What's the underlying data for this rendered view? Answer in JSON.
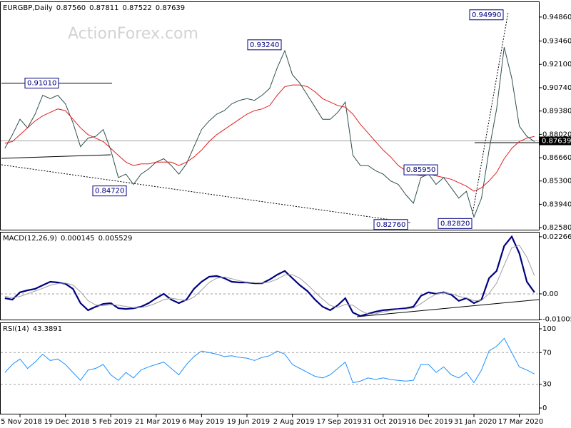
{
  "chart_data": [
    {
      "type": "line",
      "title": "EURGBP,Daily",
      "ohlc": [
        {
          "value": 0.8756,
          "label": "0.87560"
        },
        {
          "value": 0.87811,
          "label": "0.87811"
        },
        {
          "value": 0.87522,
          "label": "0.87522"
        },
        {
          "value": 0.87639,
          "label": "0.87639"
        }
      ],
      "watermark": "ActionForex.com",
      "categories": [
        null,
        null,
        "5 Nov 2018",
        null,
        null,
        null,
        null,
        null,
        "19 Dec 2018",
        null,
        null,
        null,
        null,
        null,
        "5 Feb 2019",
        null,
        null,
        null,
        null,
        null,
        "21 Mar 2019",
        null,
        null,
        null,
        null,
        null,
        "6 May 2019",
        null,
        null,
        null,
        null,
        null,
        "19 Jun 2019",
        null,
        null,
        null,
        null,
        null,
        "2 Aug 2019",
        null,
        null,
        null,
        null,
        null,
        "17 Sep 2019",
        null,
        null,
        null,
        null,
        null,
        "31 Oct 2019",
        null,
        null,
        null,
        null,
        null,
        "16 Dec 2019",
        null,
        null,
        null,
        null,
        null,
        "31 Jan 2020",
        null,
        null,
        null,
        null,
        null,
        "17 Mar 2020",
        null,
        null
      ],
      "series": [
        {
          "color": "#2f4f4f",
          "values": [
            0.872,
            0.88,
            0.889,
            0.884,
            0.892,
            0.903,
            0.901,
            0.903,
            0.898,
            0.887,
            0.873,
            0.878,
            0.879,
            0.883,
            0.871,
            0.855,
            0.857,
            0.851,
            0.857,
            0.86,
            0.864,
            0.866,
            0.862,
            0.857,
            0.863,
            0.873,
            0.883,
            0.888,
            0.892,
            0.894,
            0.898,
            0.9,
            0.901,
            0.9,
            0.903,
            0.907,
            0.919,
            0.929,
            0.915,
            0.91,
            0.903,
            0.896,
            0.889,
            0.889,
            0.893,
            0.899,
            0.868,
            0.862,
            0.862,
            0.859,
            0.857,
            0.853,
            0.851,
            0.845,
            0.84,
            0.855,
            0.857,
            0.851,
            0.855,
            0.849,
            0.843,
            0.847,
            0.832,
            0.843,
            0.871,
            0.895,
            0.931,
            0.913,
            0.885,
            0.879,
            0.876
          ]
        },
        {
          "color": "#e02020",
          "values": [
            0.875,
            0.876,
            0.88,
            0.884,
            0.888,
            0.891,
            0.893,
            0.895,
            0.894,
            0.889,
            0.884,
            0.88,
            0.878,
            0.876,
            0.872,
            0.868,
            0.864,
            0.862,
            0.863,
            0.863,
            0.864,
            0.864,
            0.864,
            0.862,
            0.864,
            0.867,
            0.871,
            0.876,
            0.88,
            0.883,
            0.886,
            0.889,
            0.892,
            0.894,
            0.895,
            0.897,
            0.903,
            0.908,
            0.909,
            0.909,
            0.908,
            0.905,
            0.901,
            0.899,
            0.897,
            0.896,
            0.892,
            0.886,
            0.881,
            0.876,
            0.871,
            0.867,
            0.862,
            0.859,
            0.857,
            0.856,
            0.857,
            0.856,
            0.855,
            0.854,
            0.852,
            0.85,
            0.847,
            0.849,
            0.853,
            0.858,
            0.866,
            0.872,
            0.876,
            0.878,
            0.879
          ]
        }
      ],
      "last_price": {
        "value": 0.87639,
        "label": "0.87639"
      },
      "annotations": [
        {
          "value": 0.9101,
          "label": "0.91010"
        },
        {
          "value": 0.8472,
          "label": "0.84720"
        },
        {
          "value": 0.9324,
          "label": "0.93240"
        },
        {
          "value": 0.8276,
          "label": "0.82760"
        },
        {
          "value": 0.8595,
          "label": "0.85950"
        },
        {
          "value": 0.8282,
          "label": "0.82820"
        },
        {
          "value": 0.9499,
          "label": "0.94990"
        }
      ],
      "ylim": [
        0.8246,
        0.9577
      ],
      "yticks": [
        {
          "value": 0.9486,
          "label": "0.94860"
        },
        {
          "value": 0.9346,
          "label": "0.93460"
        },
        {
          "value": 0.921,
          "label": "0.92100"
        },
        {
          "value": 0.9074,
          "label": "0.90740"
        },
        {
          "value": 0.8938,
          "label": "0.89380"
        },
        {
          "value": 0.8802,
          "label": "0.88020"
        },
        {
          "value": 0.8666,
          "label": "0.86660"
        },
        {
          "value": 0.853,
          "label": "0.85300"
        },
        {
          "value": 0.8394,
          "label": "0.83940"
        },
        {
          "value": 0.8258,
          "label": "0.82580"
        }
      ]
    },
    {
      "type": "line",
      "title": "MACD(12,26,9)",
      "readings": [
        0.000145,
        0.005529
      ],
      "series": [
        {
          "color": "#000080",
          "values": [
            -0.0017,
            -0.0023,
            0.0006,
            0.0014,
            0.002,
            0.0034,
            0.0048,
            0.0045,
            0.004,
            0.002,
            -0.0037,
            -0.0065,
            -0.0051,
            -0.004,
            -0.0037,
            -0.0057,
            -0.006,
            -0.0057,
            -0.0051,
            -0.0037,
            -0.0017,
            0,
            -0.0023,
            -0.0037,
            -0.0023,
            0.002,
            0.0048,
            0.0068,
            0.0071,
            0.0062,
            0.0048,
            0.0045,
            0.0045,
            0.0042,
            0.0042,
            0.0057,
            0.0076,
            0.0091,
            0.0062,
            0.0034,
            0.0011,
            -0.0023,
            -0.0051,
            -0.0065,
            -0.0045,
            -0.0017,
            -0.0074,
            -0.0088,
            -0.0079,
            -0.0071,
            -0.0065,
            -0.0062,
            -0.006,
            -0.0057,
            -0.0051,
            -0.0008,
            0.0006,
            0,
            0.0006,
            -0.0003,
            -0.0028,
            -0.0017,
            -0.0037,
            -0.0023,
            0.0062,
            0.0091,
            0.019,
            0.0227,
            0.0161,
            0.0048,
            0.0006
          ]
        },
        {
          "color": "#a0a0a0",
          "values": [
            -0.001,
            -0.0015,
            -0.001,
            0,
            0.0011,
            0.0022,
            0.0034,
            0.0041,
            0.0043,
            0.0035,
            0.0008,
            -0.0027,
            -0.0044,
            -0.0047,
            -0.0043,
            -0.0045,
            -0.005,
            -0.0055,
            -0.0054,
            -0.0048,
            -0.0037,
            -0.0023,
            -0.0017,
            -0.0022,
            -0.0027,
            -0.0013,
            0.0015,
            0.0045,
            0.0062,
            0.0067,
            0.006,
            0.0052,
            0.0046,
            0.0044,
            0.0043,
            0.0047,
            0.0058,
            0.0075,
            0.0076,
            0.0062,
            0.0036,
            0.0007,
            -0.0021,
            -0.0046,
            -0.0054,
            -0.0042,
            -0.0045,
            -0.0066,
            -0.008,
            -0.0079,
            -0.0072,
            -0.0066,
            -0.0062,
            -0.006,
            -0.0056,
            -0.0039,
            -0.0018,
            -0.0001,
            0.0004,
            0.0001,
            -0.001,
            -0.0016,
            -0.0027,
            -0.0026,
            0.0001,
            0.0043,
            0.0114,
            0.0183,
            0.0193,
            0.0145,
            0.0072
          ]
        }
      ],
      "levels": [
        0
      ],
      "ylim": [
        -0.0102,
        0.0246
      ],
      "yticks": [
        0.022662,
        {
          "value": 0,
          "label": "0.00"
        },
        -0.010052
      ]
    },
    {
      "type": "line",
      "title": "RSI(14)",
      "readings": [
        43.3891
      ],
      "series": [
        {
          "color": "#1e90ff",
          "values": [
            45,
            55,
            62,
            50,
            58,
            68,
            60,
            62,
            55,
            45,
            35,
            48,
            50,
            55,
            42,
            35,
            45,
            38,
            48,
            52,
            55,
            58,
            50,
            42,
            55,
            65,
            72,
            70,
            68,
            65,
            66,
            64,
            63,
            60,
            64,
            66,
            72,
            68,
            55,
            50,
            45,
            40,
            38,
            42,
            50,
            58,
            32,
            34,
            38,
            36,
            38,
            36,
            35,
            34,
            35,
            55,
            55,
            45,
            52,
            42,
            38,
            45,
            32,
            48,
            72,
            78,
            88,
            70,
            52,
            48,
            43
          ]
        }
      ],
      "levels": [
        70,
        30
      ],
      "ylim": [
        -7.2,
        108.1
      ],
      "yticks": [
        100,
        70,
        30,
        0
      ]
    }
  ]
}
